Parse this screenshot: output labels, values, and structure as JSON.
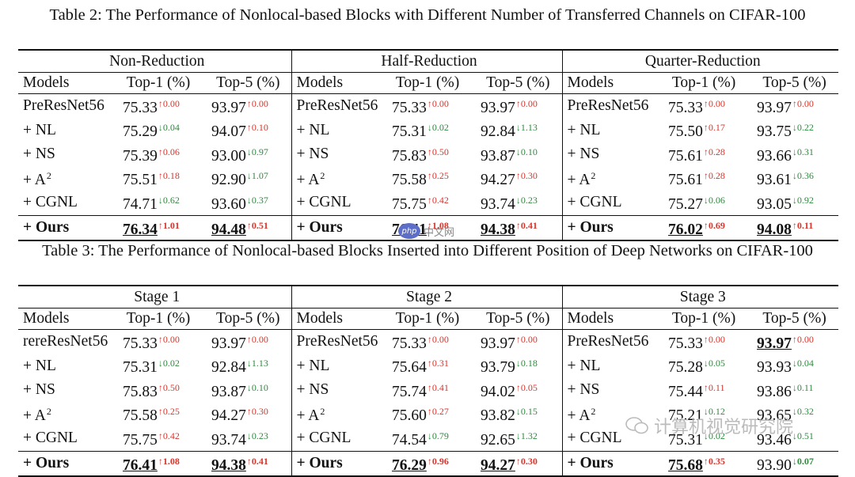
{
  "tables": [
    {
      "caption": "Table 2: The Performance of Nonlocal-based Blocks with Different Number of Transferred Channels on CIFAR-100",
      "groups": [
        "Non-Reduction",
        "Half-Reduction",
        "Quarter-Reduction"
      ],
      "col_headers": [
        "Models",
        "Top-1 (%)",
        "Top-5 (%)"
      ],
      "rows": [
        {
          "cells": [
            {
              "model": "PreResNet56",
              "t1": "75.33",
              "t1d": "↑0.00",
              "t1dir": "up",
              "t5": "93.97",
              "t5d": "↑0.00",
              "t5dir": "up"
            },
            {
              "model": "PreResNet56",
              "t1": "75.33",
              "t1d": "↑0.00",
              "t1dir": "up",
              "t5": "93.97",
              "t5d": "↑0.00",
              "t5dir": "up"
            },
            {
              "model": "PreResNet56",
              "t1": "75.33",
              "t1d": "↑0.00",
              "t1dir": "up",
              "t5": "93.97",
              "t5d": "↑0.00",
              "t5dir": "up"
            }
          ]
        },
        {
          "cells": [
            {
              "model": "+ NL",
              "t1": "75.29",
              "t1d": "↓0.04",
              "t1dir": "down",
              "t5": "94.07",
              "t5d": "↑0.10",
              "t5dir": "up"
            },
            {
              "model": "+ NL",
              "t1": "75.31",
              "t1d": "↓0.02",
              "t1dir": "down",
              "t5": "92.84",
              "t5d": "↓1.13",
              "t5dir": "down"
            },
            {
              "model": "+ NL",
              "t1": "75.50",
              "t1d": "↑0.17",
              "t1dir": "up",
              "t5": "93.75",
              "t5d": "↓0.22",
              "t5dir": "down"
            }
          ]
        },
        {
          "cells": [
            {
              "model": "+ NS",
              "t1": "75.39",
              "t1d": "↑0.06",
              "t1dir": "up",
              "t5": "93.00",
              "t5d": "↓0.97",
              "t5dir": "down"
            },
            {
              "model": "+ NS",
              "t1": "75.83",
              "t1d": "↑0.50",
              "t1dir": "up",
              "t5": "93.87",
              "t5d": "↓0.10",
              "t5dir": "down"
            },
            {
              "model": "+ NS",
              "t1": "75.61",
              "t1d": "↑0.28",
              "t1dir": "up",
              "t5": "93.66",
              "t5d": "↓0.31",
              "t5dir": "down"
            }
          ]
        },
        {
          "cells": [
            {
              "model": "+ A",
              "msup": "2",
              "t1": "75.51",
              "t1d": "↑0.18",
              "t1dir": "up",
              "t5": "92.90",
              "t5d": "↓1.07",
              "t5dir": "down"
            },
            {
              "model": "+ A",
              "msup": "2",
              "t1": "75.58",
              "t1d": "↑0.25",
              "t1dir": "up",
              "t5": "94.27",
              "t5d": "↑0.30",
              "t5dir": "up"
            },
            {
              "model": "+ A",
              "msup": "2",
              "t1": "75.61",
              "t1d": "↑0.28",
              "t1dir": "up",
              "t5": "93.61",
              "t5d": "↓0.36",
              "t5dir": "down"
            }
          ]
        },
        {
          "cells": [
            {
              "model": "+ CGNL",
              "t1": "74.71",
              "t1d": "↓0.62",
              "t1dir": "down",
              "t5": "93.60",
              "t5d": "↓0.37",
              "t5dir": "down"
            },
            {
              "model": "+ CGNL",
              "t1": "75.75",
              "t1d": "↑0.42",
              "t1dir": "up",
              "t5": "93.74",
              "t5d": "↓0.23",
              "t5dir": "down"
            },
            {
              "model": "+ CGNL",
              "t1": "75.27",
              "t1d": "↓0.06",
              "t1dir": "down",
              "t5": "93.05",
              "t5d": "↓0.92",
              "t5dir": "down"
            }
          ]
        },
        {
          "last": true,
          "cells": [
            {
              "model": "+ Ours",
              "t1": "76.34",
              "t1d": "↑1.01",
              "t1dir": "up",
              "t5": "94.48",
              "t5d": "↑0.51",
              "t5dir": "up",
              "t1u": true,
              "t5u": true
            },
            {
              "model": "+ Ours",
              "t1": "76.41",
              "t1d": "↑1.08",
              "t1dir": "up",
              "t5": "94.38",
              "t5d": "↑0.41",
              "t5dir": "up",
              "t1u": true,
              "t5u": true
            },
            {
              "model": "+ Ours",
              "t1": "76.02",
              "t1d": "↑0.69",
              "t1dir": "up",
              "t5": "94.08",
              "t5d": "↑0.11",
              "t5dir": "up",
              "t1u": true,
              "t5u": true
            }
          ]
        }
      ]
    },
    {
      "caption": "Table 3: The Performance of Nonlocal-based Blocks Inserted into Different Position of Deep Networks on CIFAR-100",
      "groups": [
        "Stage 1",
        "Stage 2",
        "Stage 3"
      ],
      "col_headers": [
        "Models",
        "Top-1 (%)",
        "Top-5 (%)"
      ],
      "rows": [
        {
          "cells": [
            {
              "model": "rereResNet56",
              "t1": "75.33",
              "t1d": "↑0.00",
              "t1dir": "up",
              "t5": "93.97",
              "t5d": "↑0.00",
              "t5dir": "up"
            },
            {
              "model": "PreResNet56",
              "t1": "75.33",
              "t1d": "↑0.00",
              "t1dir": "up",
              "t5": "93.97",
              "t5d": "↑0.00",
              "t5dir": "up"
            },
            {
              "model": "PreResNet56",
              "t1": "75.33",
              "t1d": "↑0.00",
              "t1dir": "up",
              "t5": "93.97",
              "t5d": "↑0.00",
              "t5dir": "up",
              "t5u": true,
              "t5b": true
            }
          ]
        },
        {
          "cells": [
            {
              "model": "+ NL",
              "t1": "75.31",
              "t1d": "↓0.02",
              "t1dir": "down",
              "t5": "92.84",
              "t5d": "↓1.13",
              "t5dir": "down"
            },
            {
              "model": "+ NL",
              "t1": "75.64",
              "t1d": "↑0.31",
              "t1dir": "up",
              "t5": "93.79",
              "t5d": "↓0.18",
              "t5dir": "down"
            },
            {
              "model": "+ NL",
              "t1": "75.28",
              "t1d": "↓0.05",
              "t1dir": "down",
              "t5": "93.93",
              "t5d": "↓0.04",
              "t5dir": "down"
            }
          ]
        },
        {
          "cells": [
            {
              "model": "+ NS",
              "t1": "75.83",
              "t1d": "↑0.50",
              "t1dir": "up",
              "t5": "93.87",
              "t5d": "↓0.10",
              "t5dir": "down"
            },
            {
              "model": "+ NS",
              "t1": "75.74",
              "t1d": "↑0.41",
              "t1dir": "up",
              "t5": "94.02",
              "t5d": "↑0.05",
              "t5dir": "up"
            },
            {
              "model": "+ NS",
              "t1": "75.44",
              "t1d": "↑0.11",
              "t1dir": "up",
              "t5": "93.86",
              "t5d": "↓0.11",
              "t5dir": "down"
            }
          ]
        },
        {
          "cells": [
            {
              "model": "+ A",
              "msup": "2",
              "t1": "75.58",
              "t1d": "↑0.25",
              "t1dir": "up",
              "t5": "94.27",
              "t5d": "↑0.30",
              "t5dir": "up"
            },
            {
              "model": "+ A",
              "msup": "2",
              "t1": "75.60",
              "t1d": "↑0.27",
              "t1dir": "up",
              "t5": "93.82",
              "t5d": "↓0.15",
              "t5dir": "down"
            },
            {
              "model": "+ A",
              "msup": "2",
              "t1": "75.21",
              "t1d": "↓0.12",
              "t1dir": "down",
              "t5": "93.65",
              "t5d": "↓0.32",
              "t5dir": "down"
            }
          ]
        },
        {
          "cells": [
            {
              "model": "+ CGNL",
              "t1": "75.75",
              "t1d": "↑0.42",
              "t1dir": "up",
              "t5": "93.74",
              "t5d": "↓0.23",
              "t5dir": "down"
            },
            {
              "model": "+ CGNL",
              "t1": "74.54",
              "t1d": "↓0.79",
              "t1dir": "down",
              "t5": "92.65",
              "t5d": "↓1.32",
              "t5dir": "down"
            },
            {
              "model": "+ CGNL",
              "t1": "75.31",
              "t1d": "↓0.02",
              "t1dir": "down",
              "t5": "93.46",
              "t5d": "↓0.51",
              "t5dir": "down"
            }
          ]
        },
        {
          "last": true,
          "cells": [
            {
              "model": "+ Ours",
              "t1": "76.41",
              "t1d": "↑1.08",
              "t1dir": "up",
              "t5": "94.38",
              "t5d": "↑0.41",
              "t5dir": "up",
              "t1u": true,
              "t5u": true
            },
            {
              "model": "+ Ours",
              "t1": "76.29",
              "t1d": "↑0.96",
              "t1dir": "up",
              "t5": "94.27",
              "t5d": "↑0.30",
              "t5dir": "up",
              "t1u": true,
              "t5u": true
            },
            {
              "model": "+ Ours",
              "t1": "75.68",
              "t1d": "↑0.35",
              "t1dir": "up",
              "t5": "93.90",
              "t5d": "↓0.07",
              "t5dir": "down",
              "t1u": true,
              "t5plain": true
            }
          ]
        }
      ]
    }
  ],
  "watermarks": {
    "php_badge": "php",
    "php_text": "中文网",
    "wechat_icon": "wechat-icon",
    "wechat_text": "计算机视觉研究院"
  },
  "colors": {
    "up": "#d9352c",
    "down": "#2f8a3e"
  }
}
